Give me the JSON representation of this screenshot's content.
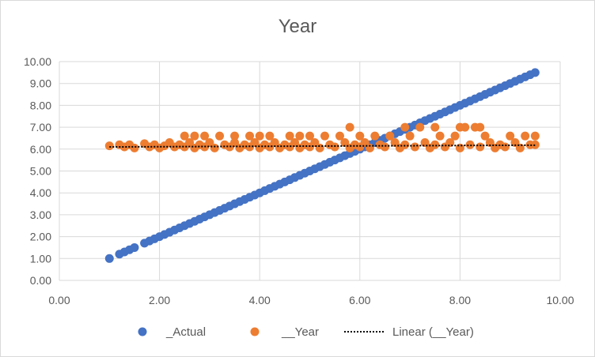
{
  "chart_data": {
    "type": "scatter",
    "title": "Year",
    "xlabel": "",
    "ylabel": "",
    "xlim": [
      0,
      10
    ],
    "ylim": [
      0,
      10
    ],
    "x_ticks": [
      "0.00",
      "2.00",
      "4.00",
      "6.00",
      "8.00",
      "10.00"
    ],
    "y_ticks": [
      "0.00",
      "1.00",
      "2.00",
      "3.00",
      "4.00",
      "5.00",
      "6.00",
      "7.00",
      "8.00",
      "9.00",
      "10.00"
    ],
    "grid": true,
    "legend_position": "bottom",
    "series": [
      {
        "name": "_Actual",
        "color": "#4472c4",
        "points": [
          [
            1.0,
            1.0
          ],
          [
            1.2,
            1.2
          ],
          [
            1.3,
            1.3
          ],
          [
            1.4,
            1.4
          ],
          [
            1.5,
            1.5
          ],
          [
            1.7,
            1.7
          ],
          [
            1.8,
            1.8
          ],
          [
            1.9,
            1.9
          ],
          [
            2.0,
            2.0
          ],
          [
            2.1,
            2.1
          ],
          [
            2.2,
            2.2
          ],
          [
            2.3,
            2.3
          ],
          [
            2.4,
            2.4
          ],
          [
            2.5,
            2.5
          ],
          [
            2.6,
            2.6
          ],
          [
            2.7,
            2.7
          ],
          [
            2.8,
            2.8
          ],
          [
            2.9,
            2.9
          ],
          [
            3.0,
            3.0
          ],
          [
            3.1,
            3.1
          ],
          [
            3.2,
            3.2
          ],
          [
            3.3,
            3.3
          ],
          [
            3.4,
            3.4
          ],
          [
            3.5,
            3.5
          ],
          [
            3.6,
            3.6
          ],
          [
            3.7,
            3.7
          ],
          [
            3.8,
            3.8
          ],
          [
            3.9,
            3.9
          ],
          [
            4.0,
            4.0
          ],
          [
            4.1,
            4.1
          ],
          [
            4.2,
            4.2
          ],
          [
            4.3,
            4.3
          ],
          [
            4.4,
            4.4
          ],
          [
            4.5,
            4.5
          ],
          [
            4.6,
            4.6
          ],
          [
            4.7,
            4.7
          ],
          [
            4.8,
            4.8
          ],
          [
            4.9,
            4.9
          ],
          [
            5.0,
            5.0
          ],
          [
            5.1,
            5.1
          ],
          [
            5.2,
            5.2
          ],
          [
            5.3,
            5.3
          ],
          [
            5.4,
            5.4
          ],
          [
            5.5,
            5.5
          ],
          [
            5.6,
            5.6
          ],
          [
            5.7,
            5.7
          ],
          [
            5.8,
            5.8
          ],
          [
            5.9,
            5.9
          ],
          [
            6.0,
            6.0
          ],
          [
            6.1,
            6.1
          ],
          [
            6.2,
            6.2
          ],
          [
            6.3,
            6.3
          ],
          [
            6.4,
            6.4
          ],
          [
            6.5,
            6.5
          ],
          [
            6.6,
            6.6
          ],
          [
            6.7,
            6.7
          ],
          [
            6.8,
            6.8
          ],
          [
            6.9,
            6.9
          ],
          [
            7.0,
            7.0
          ],
          [
            7.1,
            7.1
          ],
          [
            7.2,
            7.2
          ],
          [
            7.3,
            7.3
          ],
          [
            7.4,
            7.4
          ],
          [
            7.5,
            7.5
          ],
          [
            7.6,
            7.6
          ],
          [
            7.7,
            7.7
          ],
          [
            7.8,
            7.8
          ],
          [
            7.9,
            7.9
          ],
          [
            8.0,
            8.0
          ],
          [
            8.1,
            8.1
          ],
          [
            8.2,
            8.2
          ],
          [
            8.3,
            8.3
          ],
          [
            8.4,
            8.4
          ],
          [
            8.5,
            8.5
          ],
          [
            8.6,
            8.6
          ],
          [
            8.7,
            8.7
          ],
          [
            8.8,
            8.8
          ],
          [
            8.9,
            8.9
          ],
          [
            9.0,
            9.0
          ],
          [
            9.1,
            9.1
          ],
          [
            9.2,
            9.2
          ],
          [
            9.3,
            9.3
          ],
          [
            9.4,
            9.4
          ],
          [
            9.5,
            9.5
          ]
        ]
      },
      {
        "name": "__Year",
        "color": "#ed7d31",
        "points": [
          [
            1.0,
            6.15
          ],
          [
            1.2,
            6.2
          ],
          [
            1.3,
            6.1
          ],
          [
            1.4,
            6.2
          ],
          [
            1.5,
            6.05
          ],
          [
            1.7,
            6.25
          ],
          [
            1.8,
            6.1
          ],
          [
            1.9,
            6.2
          ],
          [
            2.0,
            6.05
          ],
          [
            2.1,
            6.15
          ],
          [
            2.2,
            6.3
          ],
          [
            2.3,
            6.1
          ],
          [
            2.4,
            6.2
          ],
          [
            2.5,
            6.6
          ],
          [
            2.5,
            6.1
          ],
          [
            2.6,
            6.3
          ],
          [
            2.7,
            6.6
          ],
          [
            2.7,
            6.05
          ],
          [
            2.8,
            6.2
          ],
          [
            2.9,
            6.6
          ],
          [
            2.9,
            6.1
          ],
          [
            3.0,
            6.3
          ],
          [
            3.1,
            6.05
          ],
          [
            3.2,
            6.6
          ],
          [
            3.3,
            6.2
          ],
          [
            3.4,
            6.1
          ],
          [
            3.5,
            6.6
          ],
          [
            3.5,
            6.3
          ],
          [
            3.6,
            6.05
          ],
          [
            3.7,
            6.2
          ],
          [
            3.8,
            6.6
          ],
          [
            3.8,
            6.1
          ],
          [
            3.9,
            6.3
          ],
          [
            4.0,
            6.6
          ],
          [
            4.0,
            6.05
          ],
          [
            4.1,
            6.2
          ],
          [
            4.2,
            6.6
          ],
          [
            4.2,
            6.1
          ],
          [
            4.3,
            6.3
          ],
          [
            4.4,
            6.05
          ],
          [
            4.5,
            6.2
          ],
          [
            4.6,
            6.6
          ],
          [
            4.6,
            6.1
          ],
          [
            4.7,
            6.3
          ],
          [
            4.8,
            6.6
          ],
          [
            4.8,
            6.05
          ],
          [
            4.9,
            6.2
          ],
          [
            5.0,
            6.6
          ],
          [
            5.0,
            6.1
          ],
          [
            5.1,
            6.3
          ],
          [
            5.2,
            6.05
          ],
          [
            5.3,
            6.6
          ],
          [
            5.4,
            6.2
          ],
          [
            5.5,
            6.1
          ],
          [
            5.6,
            6.6
          ],
          [
            5.7,
            6.3
          ],
          [
            5.8,
            7.0
          ],
          [
            5.8,
            6.05
          ],
          [
            5.9,
            6.2
          ],
          [
            6.0,
            6.6
          ],
          [
            6.0,
            6.1
          ],
          [
            6.1,
            6.3
          ],
          [
            6.2,
            6.05
          ],
          [
            6.3,
            6.6
          ],
          [
            6.4,
            6.2
          ],
          [
            6.5,
            6.1
          ],
          [
            6.6,
            6.6
          ],
          [
            6.7,
            6.3
          ],
          [
            6.8,
            6.05
          ],
          [
            6.9,
            7.0
          ],
          [
            6.9,
            6.2
          ],
          [
            7.0,
            6.6
          ],
          [
            7.1,
            6.1
          ],
          [
            7.2,
            7.0
          ],
          [
            7.3,
            6.3
          ],
          [
            7.4,
            6.05
          ],
          [
            7.5,
            7.0
          ],
          [
            7.5,
            6.2
          ],
          [
            7.6,
            6.6
          ],
          [
            7.7,
            6.1
          ],
          [
            7.8,
            6.3
          ],
          [
            7.9,
            6.6
          ],
          [
            8.0,
            7.0
          ],
          [
            8.0,
            6.05
          ],
          [
            8.1,
            7.0
          ],
          [
            8.2,
            6.2
          ],
          [
            8.3,
            7.0
          ],
          [
            8.4,
            7.0
          ],
          [
            8.4,
            6.1
          ],
          [
            8.5,
            6.6
          ],
          [
            8.6,
            6.3
          ],
          [
            8.7,
            6.05
          ],
          [
            8.8,
            6.2
          ],
          [
            8.9,
            6.1
          ],
          [
            9.0,
            6.6
          ],
          [
            9.1,
            6.3
          ],
          [
            9.2,
            6.05
          ],
          [
            9.3,
            6.6
          ],
          [
            9.4,
            6.2
          ],
          [
            9.5,
            6.6
          ],
          [
            9.5,
            6.2
          ]
        ]
      }
    ],
    "trendline": {
      "name": "Linear (__Year)",
      "color": "#000000",
      "style": "dotted",
      "start": [
        1.0,
        6.1
      ],
      "end": [
        9.5,
        6.18
      ]
    }
  }
}
